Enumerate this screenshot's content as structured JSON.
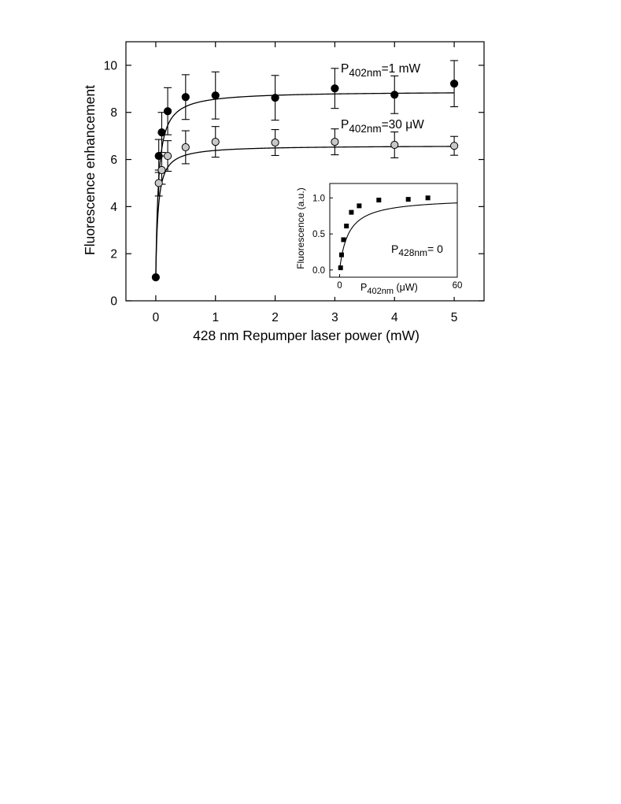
{
  "chart_data": [
    {
      "type": "scatter",
      "xlabel": "428 nm Repumper laser power (mW)",
      "ylabel": "Fluorescence enhancement",
      "xlim": [
        -0.5,
        5.5
      ],
      "ylim": [
        0,
        11
      ],
      "x_ticks": [
        "0",
        "1",
        "2",
        "3",
        "4",
        "5"
      ],
      "y_ticks": [
        "0",
        "2",
        "4",
        "6",
        "8",
        "10"
      ],
      "grid": false,
      "series": [
        {
          "name_main": "P",
          "name_sub": "402nm",
          "name_rest": "=1 mW",
          "marker": "filled-black",
          "color": "#000000",
          "x": [
            0,
            0.05,
            0.1,
            0.2,
            0.5,
            1.0,
            2.0,
            3.0,
            4.0,
            5.0
          ],
          "y": [
            1.0,
            6.15,
            7.15,
            8.05,
            8.65,
            8.72,
            8.62,
            9.02,
            8.75,
            9.22
          ],
          "err": [
            0,
            0.7,
            0.85,
            1.0,
            0.95,
            1.0,
            0.95,
            0.85,
            0.8,
            0.98
          ],
          "fit_saturation": 8.9,
          "fit_scale": 0.045
        },
        {
          "name_main": "P",
          "name_sub": "402nm",
          "name_rest": "=30 μW",
          "marker": "filled-grey",
          "color": "#c8c8c8",
          "x": [
            0.05,
            0.1,
            0.2,
            0.5,
            1.0,
            2.0,
            3.0,
            4.0,
            5.0
          ],
          "y": [
            5.0,
            5.55,
            6.15,
            6.52,
            6.75,
            6.72,
            6.75,
            6.62,
            6.58
          ],
          "err": [
            0.55,
            0.6,
            0.65,
            0.7,
            0.65,
            0.55,
            0.55,
            0.55,
            0.4
          ],
          "fit_saturation": 6.6,
          "fit_scale": 0.04
        }
      ]
    },
    {
      "type": "scatter",
      "inset": true,
      "xlabel_main": "P",
      "xlabel_sub": "402nm",
      "xlabel_rest": " (μW)",
      "ylabel": "Fluorescence (a.u.)",
      "annotation_main": "P",
      "annotation_sub": "428nm",
      "annotation_rest": "= 0",
      "xlim": [
        -5,
        60
      ],
      "ylim": [
        -0.1,
        1.2
      ],
      "x_ticks": [
        "0",
        "60"
      ],
      "y_ticks": [
        "0.0",
        "0.5",
        "1.0"
      ],
      "series": [
        {
          "marker": "square-black",
          "x": [
            0.5,
            1.0,
            2.0,
            3.5,
            6.0,
            10.0,
            20.0,
            35.0,
            45.0
          ],
          "y": [
            0.03,
            0.21,
            0.42,
            0.61,
            0.8,
            0.89,
            0.97,
            0.98,
            1.0
          ],
          "fit_saturation": 1.0,
          "fit_scale": 4.5
        }
      ]
    }
  ]
}
